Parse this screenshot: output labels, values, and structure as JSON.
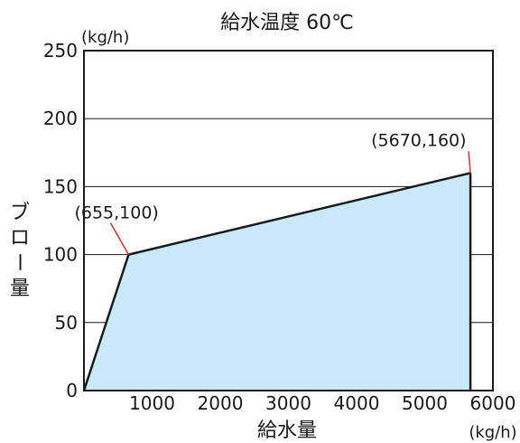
{
  "chart_data": {
    "type": "area",
    "title": "給水温度 60℃",
    "xlabel": "給水量",
    "ylabel": "ブロー量",
    "x_unit": "(kg/h)",
    "y_unit": "(kg/h)",
    "xlim": [
      0,
      6000
    ],
    "ylim": [
      0,
      250
    ],
    "x_ticks": [
      1000,
      2000,
      3000,
      4000,
      5000,
      6000
    ],
    "y_ticks": [
      0,
      50,
      100,
      150,
      200,
      250
    ],
    "grid": true,
    "series": [
      {
        "x": [
          0,
          655,
          5670
        ],
        "y": [
          0,
          100,
          160
        ]
      }
    ],
    "annotations": [
      {
        "text": "(655,100)",
        "x": 655,
        "y": 100
      },
      {
        "text": "(5670,160)",
        "x": 5670,
        "y": 160
      }
    ],
    "colors": {
      "fill": "#c9e8f8",
      "line": "#1a1a1a",
      "leader": "#e0312f",
      "grid": "#1a1a1a"
    }
  }
}
